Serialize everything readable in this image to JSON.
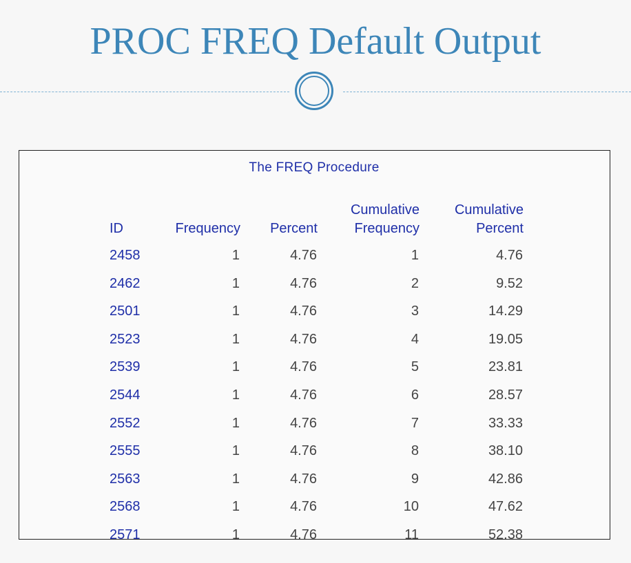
{
  "slide": {
    "title": "PROC FREQ Default Output"
  },
  "output": {
    "procedure_title": "The FREQ Procedure",
    "headers": {
      "id": "ID",
      "frequency": "Frequency",
      "percent": "Percent",
      "cum_freq_line1": "Cumulative",
      "cum_freq_line2": "Frequency",
      "cum_pct_line1": "Cumulative",
      "cum_pct_line2": "Percent"
    },
    "rows": [
      {
        "id": "2458",
        "frequency": "1",
        "percent": "4.76",
        "cum_freq": "1",
        "cum_pct": "4.76"
      },
      {
        "id": "2462",
        "frequency": "1",
        "percent": "4.76",
        "cum_freq": "2",
        "cum_pct": "9.52"
      },
      {
        "id": "2501",
        "frequency": "1",
        "percent": "4.76",
        "cum_freq": "3",
        "cum_pct": "14.29"
      },
      {
        "id": "2523",
        "frequency": "1",
        "percent": "4.76",
        "cum_freq": "4",
        "cum_pct": "19.05"
      },
      {
        "id": "2539",
        "frequency": "1",
        "percent": "4.76",
        "cum_freq": "5",
        "cum_pct": "23.81"
      },
      {
        "id": "2544",
        "frequency": "1",
        "percent": "4.76",
        "cum_freq": "6",
        "cum_pct": "28.57"
      },
      {
        "id": "2552",
        "frequency": "1",
        "percent": "4.76",
        "cum_freq": "7",
        "cum_pct": "33.33"
      },
      {
        "id": "2555",
        "frequency": "1",
        "percent": "4.76",
        "cum_freq": "8",
        "cum_pct": "38.10"
      },
      {
        "id": "2563",
        "frequency": "1",
        "percent": "4.76",
        "cum_freq": "9",
        "cum_pct": "42.86"
      },
      {
        "id": "2568",
        "frequency": "1",
        "percent": "4.76",
        "cum_freq": "10",
        "cum_pct": "47.62"
      },
      {
        "id": "2571",
        "frequency": "1",
        "percent": "4.76",
        "cum_freq": "11",
        "cum_pct": "52.38"
      }
    ]
  },
  "colors": {
    "title": "#3d86b8",
    "sas_header": "#1f2fa8",
    "cell_text": "#444444"
  }
}
